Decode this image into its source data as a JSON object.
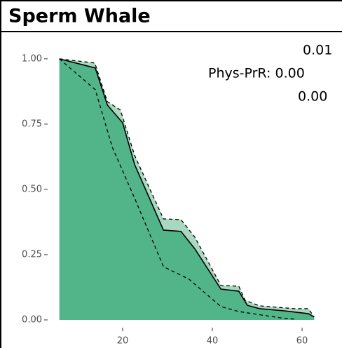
{
  "chart_data": {
    "type": "area",
    "title": "Sperm Whale",
    "annotations": [
      "0.01",
      "Phys-PrR: 0.00",
      "0.00"
    ],
    "area_color": "#52b58a",
    "band_color": "#a8d8c0",
    "xlim": [
      3.6,
      68.9
    ],
    "ylim": [
      -0.027,
      1.048
    ],
    "xticks": [
      20,
      40,
      60
    ],
    "yticks": [
      {
        "value": 0,
        "label": "0.00"
      },
      {
        "value": 0.25,
        "label": "0.25"
      },
      {
        "value": 0.5,
        "label": "0.50"
      },
      {
        "value": 0.75,
        "label": "0.75"
      },
      {
        "value": 1,
        "label": "1.00"
      }
    ],
    "series": [
      {
        "style": "solid",
        "color": "#000000",
        "fill": "area",
        "x": [
          5.9,
          13.9,
          16.6,
          20,
          22.7,
          29.1,
          33,
          36.1,
          41.9,
          45.9,
          47.8,
          50.5,
          55.9,
          61.4,
          62.7
        ],
        "values": [
          1.0,
          0.965,
          0.823,
          0.755,
          0.594,
          0.344,
          0.339,
          0.272,
          0.118,
          0.11,
          0.056,
          0.043,
          0.035,
          0.024,
          0.011
        ]
      },
      {
        "style": "dashed",
        "color": "#000000",
        "fill": "band",
        "x": [
          5.9,
          13.8,
          16.6,
          19.5,
          22.7,
          29.1,
          33,
          36.1,
          41.9,
          45.9,
          47.3,
          50.5,
          58.3,
          61.4,
          62.7
        ],
        "values": [
          1.0,
          0.984,
          0.836,
          0.804,
          0.629,
          0.387,
          0.384,
          0.317,
          0.132,
          0.129,
          0.075,
          0.054,
          0.043,
          0.043,
          0.011
        ]
      },
      {
        "style": "dashed",
        "color": "#000000",
        "x": [
          5.9,
          13.9,
          17.7,
          22.7,
          29.1,
          34.8,
          41.9,
          45.9,
          52,
          55.2,
          58.3
        ],
        "values": [
          1.0,
          0.882,
          0.661,
          0.465,
          0.204,
          0.156,
          0.051,
          0.032,
          0.016,
          0.008,
          0.003
        ]
      }
    ]
  }
}
